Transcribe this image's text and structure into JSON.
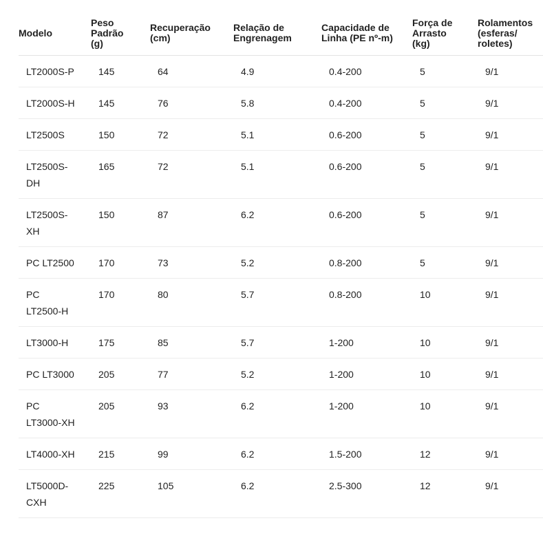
{
  "table": {
    "headers": [
      "Modelo",
      "Peso Padrão (g)",
      "Recuperação (cm)",
      "Relação de Engrenagem",
      "Capacidade de Linha (PE nº-m)",
      "Força de Arrasto (kg)",
      "Rolamentos (esferas/ roletes)"
    ],
    "rows": [
      [
        "LT2000S-P",
        "145",
        "64",
        "4.9",
        "0.4-200",
        "5",
        "9/1"
      ],
      [
        "LT2000S-H",
        "145",
        "76",
        "5.8",
        "0.4-200",
        "5",
        "9/1"
      ],
      [
        "LT2500S",
        "150",
        "72",
        "5.1",
        "0.6-200",
        "5",
        "9/1"
      ],
      [
        "LT2500S-DH",
        "165",
        "72",
        "5.1",
        "0.6-200",
        "5",
        "9/1"
      ],
      [
        "LT2500S-XH",
        "150",
        "87",
        "6.2",
        "0.6-200",
        "5",
        "9/1"
      ],
      [
        "PC LT2500",
        "170",
        "73",
        "5.2",
        "0.8-200",
        "5",
        "9/1"
      ],
      [
        "PC LT2500-H",
        "170",
        "80",
        "5.7",
        "0.8-200",
        "10",
        "9/1"
      ],
      [
        "LT3000-H",
        "175",
        "85",
        "5.7",
        "1-200",
        "10",
        "9/1"
      ],
      [
        "PC LT3000",
        "205",
        "77",
        "5.2",
        "1-200",
        "10",
        "9/1"
      ],
      [
        "PC LT3000-XH",
        "205",
        "93",
        "6.2",
        "1-200",
        "10",
        "9/1"
      ],
      [
        "LT4000-XH",
        "215",
        "99",
        "6.2",
        "1.5-200",
        "12",
        "9/1"
      ],
      [
        "LT5000D-CXH",
        "225",
        "105",
        "6.2",
        "2.5-300",
        "12",
        "9/1"
      ]
    ]
  }
}
